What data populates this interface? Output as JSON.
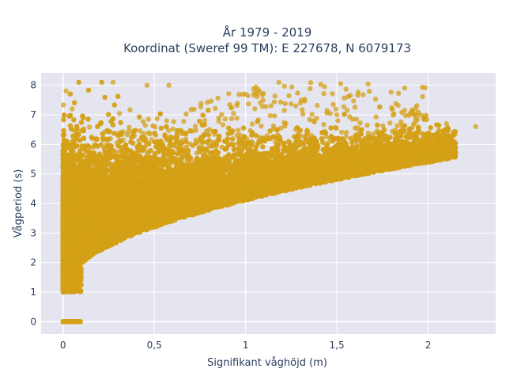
{
  "chart_data": {
    "type": "scatter",
    "title_line1": "År 1979 - 2019",
    "title_line2": "Koordinat (Sweref 99 TM): E 227678, N 6079173",
    "xlabel": "Signifikant våghöjd (m)",
    "ylabel": "Vågperiod (s)",
    "xlim": [
      -0.12,
      2.37
    ],
    "ylim": [
      -0.42,
      8.42
    ],
    "x_ticks": [
      0,
      0.5,
      1,
      1.5,
      2
    ],
    "x_tick_labels": [
      "0",
      "0,5",
      "1",
      "1,5",
      "2"
    ],
    "y_ticks": [
      0,
      1,
      2,
      3,
      4,
      5,
      6,
      7,
      8
    ],
    "y_tick_labels": [
      "0",
      "1",
      "2",
      "3",
      "4",
      "5",
      "6",
      "7",
      "8"
    ],
    "grid": true,
    "legend": "none",
    "marker_color": "#d4a017",
    "plot_bgcolor": "#e5e5f0",
    "point_count": 25000,
    "sample_points": [
      {
        "x": 0.0,
        "y": 0.0
      },
      {
        "x": 0.05,
        "y": 0.0
      },
      {
        "x": 0.09,
        "y": 0.0
      },
      {
        "x": 0.0,
        "y": 1.0
      },
      {
        "x": 0.05,
        "y": 2.5
      },
      {
        "x": 0.02,
        "y": 5.9
      },
      {
        "x": 0.05,
        "y": 7.2
      },
      {
        "x": 0.1,
        "y": 1.5
      },
      {
        "x": 0.25,
        "y": 3.0
      },
      {
        "x": 0.5,
        "y": 3.6
      },
      {
        "x": 0.5,
        "y": 4.6
      },
      {
        "x": 0.46,
        "y": 8.0
      },
      {
        "x": 0.58,
        "y": 8.0
      },
      {
        "x": 1.0,
        "y": 4.5
      },
      {
        "x": 1.0,
        "y": 5.6
      },
      {
        "x": 1.3,
        "y": 7.4
      },
      {
        "x": 1.5,
        "y": 5.2
      },
      {
        "x": 1.5,
        "y": 7.0
      },
      {
        "x": 1.8,
        "y": 5.6
      },
      {
        "x": 2.0,
        "y": 6.0
      },
      {
        "x": 2.1,
        "y": 6.7
      },
      {
        "x": 2.26,
        "y": 6.6
      }
    ]
  }
}
